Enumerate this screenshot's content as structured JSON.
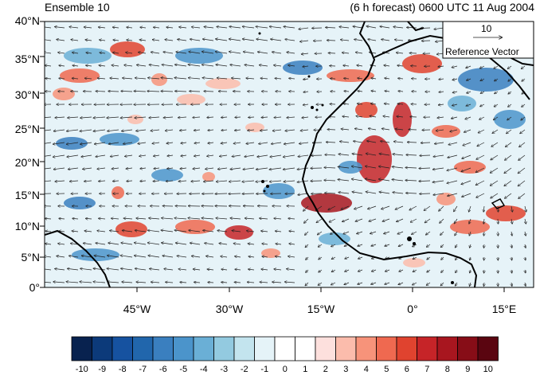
{
  "header": {
    "left_title": "Ensemble 10",
    "right_title": "(6 h forecast) 0600 UTC 11 Aug 2004"
  },
  "map": {
    "lat_labels": [
      "40°N",
      "35°N",
      "30°N",
      "25°N",
      "20°N",
      "15°N",
      "10°N",
      "5°N",
      "0°"
    ],
    "lon_labels": [
      "45°W",
      "30°W",
      "15°W",
      "0°",
      "15°E"
    ],
    "reference_vector": {
      "value": "10",
      "label": "Reference Vector"
    }
  },
  "colorbar": {
    "labels": [
      "-10",
      "-9",
      "-8",
      "-7",
      "-6",
      "-5",
      "-4",
      "-3",
      "-2",
      "-1",
      "0",
      "1",
      "2",
      "3",
      "4",
      "5",
      "6",
      "7",
      "8",
      "9",
      "10"
    ],
    "colors": [
      "#08224f",
      "#0c3a7a",
      "#1652a0",
      "#2166ac",
      "#3a7fbf",
      "#4b94cb",
      "#6aafd6",
      "#93cae0",
      "#c3e4ee",
      "#e5f3f8",
      "#ffffff",
      "#ffffff",
      "#fde0dd",
      "#fbbcac",
      "#f7937a",
      "#ef6950",
      "#e0432f",
      "#c62428",
      "#a8161f",
      "#870d17",
      "#5a0510"
    ]
  }
}
